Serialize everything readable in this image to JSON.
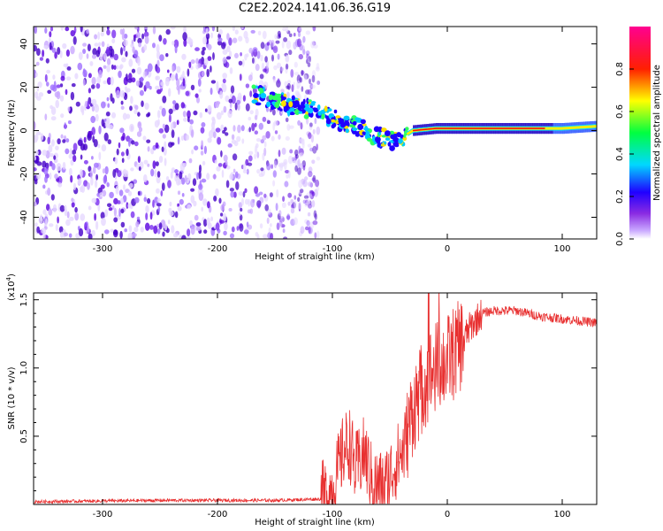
{
  "title": "C2E2.2024.141.06.36.G19",
  "chart_data": [
    {
      "type": "heatmap",
      "xlabel": "Height of straight line (km)",
      "ylabel": "Frequency (Hz)",
      "xlim": [
        -360,
        130
      ],
      "ylim": [
        -50,
        48
      ],
      "xticks": [
        -300,
        -200,
        -100,
        0,
        100
      ],
      "yticks": [
        -40,
        -20,
        0,
        20,
        40
      ],
      "colorbar": {
        "label": "Normalized spectral amplitude",
        "range": [
          0,
          1
        ],
        "ticks": [
          "0.0",
          "0.2",
          "0.4",
          "0.6",
          "0.8"
        ],
        "tick_values": [
          0.0,
          0.2,
          0.4,
          0.6,
          0.8
        ],
        "colors": [
          "#ffffff",
          "#a070ff",
          "#5a00e0",
          "#0000ff",
          "#00e0ff",
          "#00ff40",
          "#ffff00",
          "#ff0000",
          "#ff0080"
        ]
      },
      "signal_track": [
        {
          "x": -170,
          "y": 17
        },
        {
          "x": -140,
          "y": 12
        },
        {
          "x": -120,
          "y": 10
        },
        {
          "x": -100,
          "y": 6
        },
        {
          "x": -80,
          "y": 2
        },
        {
          "x": -60,
          "y": -3
        },
        {
          "x": -45,
          "y": -5
        },
        {
          "x": -30,
          "y": 0
        },
        {
          "x": -10,
          "y": 1
        },
        {
          "x": 20,
          "y": 1
        },
        {
          "x": 60,
          "y": 1
        },
        {
          "x": 100,
          "y": 1
        },
        {
          "x": 130,
          "y": 2
        }
      ]
    },
    {
      "type": "line",
      "xlabel": "Height of straight line (km)",
      "ylabel": "SNR (10 * v/v)",
      "scale_label": "(x10",
      "scale_exp": "4",
      "scale_close": ")",
      "xlim": [
        -360,
        130
      ],
      "ylim": [
        0.0,
        1.55
      ],
      "xticks": [
        -300,
        -200,
        -100,
        0,
        100
      ],
      "yticks": [
        0.5,
        1.0,
        1.5
      ],
      "ytick_labels": [
        "0.5",
        "1.0",
        "1.5"
      ],
      "color": "#e83030",
      "series": [
        {
          "x": -360,
          "y": 0.02
        },
        {
          "x": -250,
          "y": 0.03
        },
        {
          "x": -150,
          "y": 0.03
        },
        {
          "x": -110,
          "y": 0.04
        },
        {
          "x": -100,
          "y": 0.1
        },
        {
          "x": -90,
          "y": 0.4
        },
        {
          "x": -85,
          "y": 0.45
        },
        {
          "x": -80,
          "y": 0.25
        },
        {
          "x": -72,
          "y": 0.38
        },
        {
          "x": -65,
          "y": 0.15
        },
        {
          "x": -55,
          "y": 0.12
        },
        {
          "x": -45,
          "y": 0.3
        },
        {
          "x": -38,
          "y": 0.4
        },
        {
          "x": -30,
          "y": 0.7
        },
        {
          "x": -20,
          "y": 0.9
        },
        {
          "x": -10,
          "y": 1.0
        },
        {
          "x": 0,
          "y": 1.05
        },
        {
          "x": 10,
          "y": 1.15
        },
        {
          "x": 20,
          "y": 1.3
        },
        {
          "x": 30,
          "y": 1.4
        },
        {
          "x": 40,
          "y": 1.42
        },
        {
          "x": 60,
          "y": 1.42
        },
        {
          "x": 80,
          "y": 1.38
        },
        {
          "x": 100,
          "y": 1.36
        },
        {
          "x": 130,
          "y": 1.33
        }
      ]
    }
  ]
}
